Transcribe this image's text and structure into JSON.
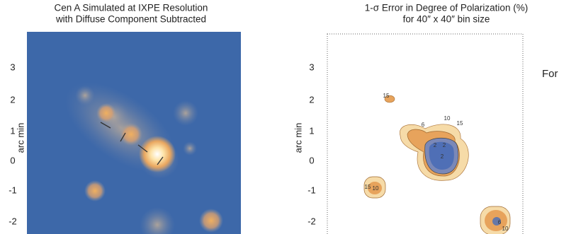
{
  "left_panel": {
    "title": [
      "Cen A Simulated at IXPE Resolution",
      "with Diffuse Component Subtracted"
    ],
    "y_label": "arc min",
    "y_ticks": [
      "3",
      "2",
      "1",
      "0",
      "-1",
      "-2"
    ]
  },
  "right_panel": {
    "title": [
      "1-σ Error in Degree of Polarization (%)",
      "for 40″ x 40″ bin size"
    ],
    "y_label": "arc min",
    "y_ticks": [
      "3",
      "2",
      "1",
      "0",
      "-1",
      "-2"
    ],
    "contour_labels": [
      "15",
      "6",
      "10",
      "15",
      "2",
      "2",
      "2",
      "15",
      "10",
      "6",
      "10"
    ]
  },
  "body_text": "For"
}
